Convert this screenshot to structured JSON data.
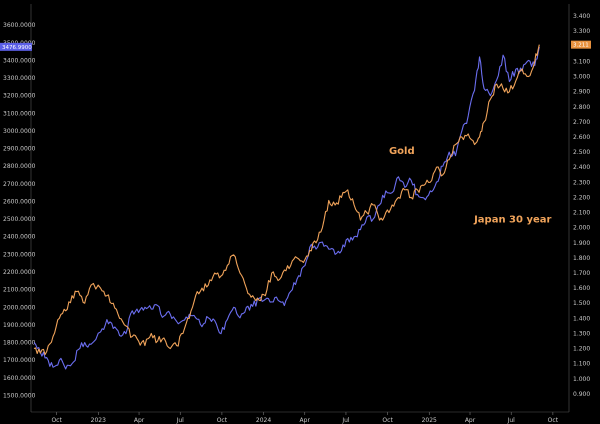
{
  "chart_data": {
    "type": "line",
    "title": "",
    "xlabel": "",
    "ylabel": "",
    "grid": false,
    "x_axis": {
      "range": [
        "2022-08-12",
        "2025-10-30"
      ],
      "ticks": [
        {
          "label": "Oct",
          "date": "2022-10-01"
        },
        {
          "label": "2023",
          "date": "2023-01-01"
        },
        {
          "label": "Apr",
          "date": "2023-04-01"
        },
        {
          "label": "Jul",
          "date": "2023-07-01"
        },
        {
          "label": "Oct",
          "date": "2023-10-01"
        },
        {
          "label": "2024",
          "date": "2024-01-01"
        },
        {
          "label": "Apr",
          "date": "2024-04-01"
        },
        {
          "label": "Jul",
          "date": "2024-07-01"
        },
        {
          "label": "Oct",
          "date": "2024-10-01"
        },
        {
          "label": "2025",
          "date": "2025-01-01"
        },
        {
          "label": "Apr",
          "date": "2025-04-01"
        },
        {
          "label": "Jul",
          "date": "2025-07-01"
        },
        {
          "label": "Oct",
          "date": "2025-10-01"
        }
      ]
    },
    "y_left": {
      "range": [
        1440,
        3720
      ],
      "ticks": [
        "1500.0000",
        "1600.0000",
        "1700.0000",
        "1800.0000",
        "1900.0000",
        "2000.0000",
        "2100.0000",
        "2200.0000",
        "2300.0000",
        "2400.0000",
        "2500.0000",
        "2600.0000",
        "2700.0000",
        "2800.0000",
        "2900.0000",
        "3000.0000",
        "3100.0000",
        "3200.0000",
        "3300.0000",
        "3400.0000",
        "3500.0000",
        "3600.0000"
      ],
      "tick_values": [
        1500,
        1600,
        1700,
        1800,
        1900,
        2000,
        2100,
        2200,
        2300,
        2400,
        2500,
        2600,
        2700,
        2800,
        2900,
        3000,
        3100,
        3200,
        3300,
        3400,
        3500,
        3600
      ],
      "current_label": "3476.9900",
      "current_value": 3476.99
    },
    "y_right": {
      "range": [
        0.82,
        3.48
      ],
      "ticks": [
        "0.900",
        "1.000",
        "1.100",
        "1.200",
        "1.300",
        "1.400",
        "1.500",
        "1.600",
        "1.700",
        "1.800",
        "1.900",
        "2.000",
        "2.100",
        "2.200",
        "2.300",
        "2.400",
        "2.500",
        "2.600",
        "2.700",
        "2.800",
        "2.900",
        "3.000",
        "3.100",
        "3.200",
        "3.300",
        "3.400"
      ],
      "tick_values": [
        0.9,
        1.0,
        1.1,
        1.2,
        1.3,
        1.4,
        1.5,
        1.6,
        1.7,
        1.8,
        1.9,
        2.0,
        2.1,
        2.2,
        2.3,
        2.4,
        2.5,
        2.6,
        2.7,
        2.8,
        2.9,
        3.0,
        3.1,
        3.2,
        3.3,
        3.4
      ],
      "current_label": "3.211",
      "current_value": 3.211
    },
    "annotations": [
      {
        "text": "Gold",
        "color": "#f0a35a",
        "anchor_date": "2024-10-04",
        "anchor_value": 2870
      },
      {
        "text": "Japan 30 year",
        "color": "#f0a35a",
        "anchor_date": "2025-04-10",
        "anchor_value": 2480
      }
    ],
    "series": [
      {
        "name": "Gold",
        "axis": "left",
        "color": "#6b6ef0",
        "points": [
          [
            "2022-08-12",
            1800
          ],
          [
            "2022-08-26",
            1745
          ],
          [
            "2022-09-09",
            1715
          ],
          [
            "2022-09-23",
            1660
          ],
          [
            "2022-10-07",
            1700
          ],
          [
            "2022-10-21",
            1650
          ],
          [
            "2022-11-04",
            1680
          ],
          [
            "2022-11-18",
            1760
          ],
          [
            "2022-12-02",
            1800
          ],
          [
            "2022-12-16",
            1790
          ],
          [
            "2023-01-06",
            1860
          ],
          [
            "2023-01-20",
            1930
          ],
          [
            "2023-02-03",
            1880
          ],
          [
            "2023-02-17",
            1840
          ],
          [
            "2023-03-03",
            1850
          ],
          [
            "2023-03-17",
            1980
          ],
          [
            "2023-03-31",
            1970
          ],
          [
            "2023-04-14",
            2000
          ],
          [
            "2023-04-28",
            1990
          ],
          [
            "2023-05-12",
            2010
          ],
          [
            "2023-05-26",
            1950
          ],
          [
            "2023-06-09",
            1960
          ],
          [
            "2023-06-23",
            1920
          ],
          [
            "2023-07-07",
            1925
          ],
          [
            "2023-07-21",
            1960
          ],
          [
            "2023-08-04",
            1940
          ],
          [
            "2023-08-18",
            1890
          ],
          [
            "2023-09-01",
            1940
          ],
          [
            "2023-09-15",
            1925
          ],
          [
            "2023-09-29",
            1850
          ],
          [
            "2023-10-13",
            1930
          ],
          [
            "2023-10-27",
            2000
          ],
          [
            "2023-11-10",
            1940
          ],
          [
            "2023-11-24",
            2000
          ],
          [
            "2023-12-08",
            2005
          ],
          [
            "2023-12-22",
            2050
          ],
          [
            "2024-01-05",
            2045
          ],
          [
            "2024-01-19",
            2030
          ],
          [
            "2024-02-02",
            2040
          ],
          [
            "2024-02-16",
            2010
          ],
          [
            "2024-03-01",
            2090
          ],
          [
            "2024-03-15",
            2160
          ],
          [
            "2024-03-29",
            2230
          ],
          [
            "2024-04-12",
            2340
          ],
          [
            "2024-04-26",
            2330
          ],
          [
            "2024-05-10",
            2370
          ],
          [
            "2024-05-24",
            2330
          ],
          [
            "2024-06-07",
            2300
          ],
          [
            "2024-06-21",
            2320
          ],
          [
            "2024-07-05",
            2390
          ],
          [
            "2024-07-19",
            2400
          ],
          [
            "2024-08-02",
            2440
          ],
          [
            "2024-08-16",
            2510
          ],
          [
            "2024-08-30",
            2500
          ],
          [
            "2024-09-13",
            2580
          ],
          [
            "2024-09-27",
            2660
          ],
          [
            "2024-10-11",
            2650
          ],
          [
            "2024-10-25",
            2740
          ],
          [
            "2024-11-08",
            2680
          ],
          [
            "2024-11-22",
            2720
          ],
          [
            "2024-12-06",
            2640
          ],
          [
            "2024-12-20",
            2620
          ],
          [
            "2025-01-03",
            2660
          ],
          [
            "2025-01-17",
            2710
          ],
          [
            "2025-01-31",
            2800
          ],
          [
            "2025-02-14",
            2880
          ],
          [
            "2025-02-28",
            2860
          ],
          [
            "2025-03-14",
            3000
          ],
          [
            "2025-03-28",
            3085
          ],
          [
            "2025-04-11",
            3230
          ],
          [
            "2025-04-22",
            3420
          ],
          [
            "2025-05-02",
            3240
          ],
          [
            "2025-05-16",
            3200
          ],
          [
            "2025-05-30",
            3290
          ],
          [
            "2025-06-13",
            3430
          ],
          [
            "2025-06-27",
            3280
          ],
          [
            "2025-07-11",
            3350
          ],
          [
            "2025-07-25",
            3340
          ],
          [
            "2025-08-08",
            3400
          ],
          [
            "2025-08-22",
            3370
          ],
          [
            "2025-09-01",
            3476.99
          ]
        ]
      },
      {
        "name": "Japan 30 year",
        "axis": "right",
        "color": "#f0a35a",
        "points": [
          [
            "2022-08-12",
            1.2
          ],
          [
            "2022-08-26",
            1.17
          ],
          [
            "2022-09-09",
            1.18
          ],
          [
            "2022-09-23",
            1.28
          ],
          [
            "2022-10-07",
            1.4
          ],
          [
            "2022-10-21",
            1.45
          ],
          [
            "2022-11-04",
            1.55
          ],
          [
            "2022-11-18",
            1.58
          ],
          [
            "2022-12-02",
            1.5
          ],
          [
            "2022-12-16",
            1.62
          ],
          [
            "2023-01-06",
            1.6
          ],
          [
            "2023-01-20",
            1.55
          ],
          [
            "2023-02-03",
            1.5
          ],
          [
            "2023-02-17",
            1.4
          ],
          [
            "2023-03-03",
            1.35
          ],
          [
            "2023-03-17",
            1.28
          ],
          [
            "2023-03-31",
            1.25
          ],
          [
            "2023-04-14",
            1.22
          ],
          [
            "2023-04-28",
            1.3
          ],
          [
            "2023-05-12",
            1.25
          ],
          [
            "2023-05-26",
            1.27
          ],
          [
            "2023-06-09",
            1.2
          ],
          [
            "2023-06-23",
            1.22
          ],
          [
            "2023-07-07",
            1.3
          ],
          [
            "2023-07-21",
            1.4
          ],
          [
            "2023-08-04",
            1.55
          ],
          [
            "2023-08-18",
            1.6
          ],
          [
            "2023-09-01",
            1.62
          ],
          [
            "2023-09-15",
            1.7
          ],
          [
            "2023-09-29",
            1.68
          ],
          [
            "2023-10-13",
            1.75
          ],
          [
            "2023-10-27",
            1.82
          ],
          [
            "2023-11-10",
            1.7
          ],
          [
            "2023-11-24",
            1.6
          ],
          [
            "2023-12-08",
            1.55
          ],
          [
            "2023-12-22",
            1.52
          ],
          [
            "2024-01-05",
            1.55
          ],
          [
            "2024-01-19",
            1.7
          ],
          [
            "2024-02-02",
            1.65
          ],
          [
            "2024-02-16",
            1.72
          ],
          [
            "2024-03-01",
            1.75
          ],
          [
            "2024-03-15",
            1.8
          ],
          [
            "2024-03-29",
            1.77
          ],
          [
            "2024-04-12",
            1.85
          ],
          [
            "2024-04-26",
            1.9
          ],
          [
            "2024-05-10",
            2.0
          ],
          [
            "2024-05-24",
            2.18
          ],
          [
            "2024-06-07",
            2.15
          ],
          [
            "2024-06-21",
            2.2
          ],
          [
            "2024-07-05",
            2.25
          ],
          [
            "2024-07-19",
            2.15
          ],
          [
            "2024-08-02",
            2.05
          ],
          [
            "2024-08-16",
            2.1
          ],
          [
            "2024-08-30",
            2.15
          ],
          [
            "2024-09-13",
            2.05
          ],
          [
            "2024-09-27",
            2.1
          ],
          [
            "2024-10-11",
            2.15
          ],
          [
            "2024-10-25",
            2.2
          ],
          [
            "2024-11-08",
            2.25
          ],
          [
            "2024-11-22",
            2.2
          ],
          [
            "2024-12-06",
            2.25
          ],
          [
            "2024-12-20",
            2.28
          ],
          [
            "2025-01-03",
            2.3
          ],
          [
            "2025-01-17",
            2.4
          ],
          [
            "2025-01-31",
            2.35
          ],
          [
            "2025-02-14",
            2.45
          ],
          [
            "2025-02-28",
            2.55
          ],
          [
            "2025-03-14",
            2.6
          ],
          [
            "2025-03-28",
            2.62
          ],
          [
            "2025-04-11",
            2.55
          ],
          [
            "2025-04-22",
            2.6
          ],
          [
            "2025-05-02",
            2.7
          ],
          [
            "2025-05-16",
            2.85
          ],
          [
            "2025-05-30",
            2.95
          ],
          [
            "2025-06-13",
            2.92
          ],
          [
            "2025-06-27",
            2.9
          ],
          [
            "2025-07-11",
            2.97
          ],
          [
            "2025-07-25",
            3.05
          ],
          [
            "2025-08-08",
            3.0
          ],
          [
            "2025-08-22",
            3.1
          ],
          [
            "2025-09-01",
            3.211
          ]
        ]
      }
    ]
  }
}
